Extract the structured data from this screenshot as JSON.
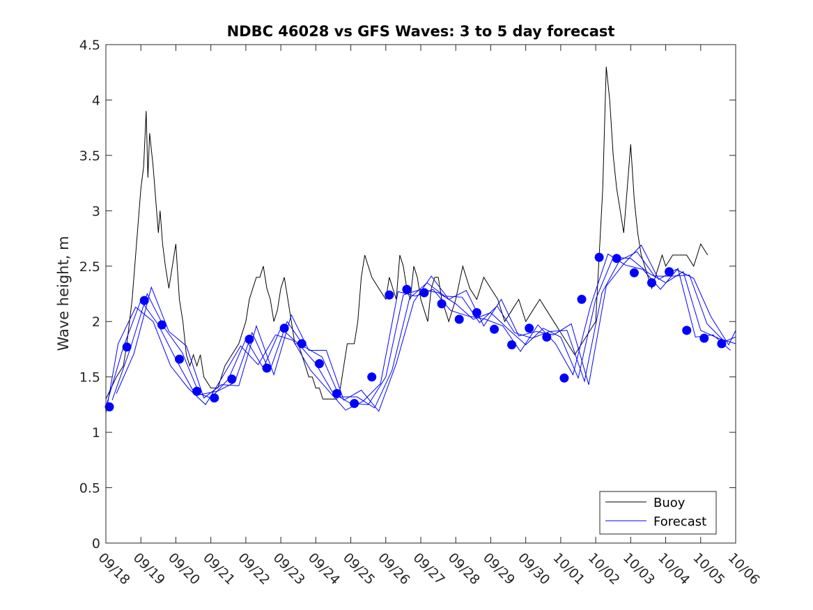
{
  "chart_data": {
    "type": "line",
    "title": "NDBC 46028 vs GFS Waves: 3 to 5 day forecast",
    "xlabel": "",
    "ylabel": "Wave height, m",
    "x_tick_labels": [
      "09/18",
      "09/19",
      "09/20",
      "09/21",
      "09/22",
      "09/23",
      "09/24",
      "09/25",
      "09/26",
      "09/27",
      "09/28",
      "09/29",
      "09/30",
      "10/01",
      "10/02",
      "10/03",
      "10/04",
      "10/05",
      "10/06"
    ],
    "xlim_days": [
      0,
      18
    ],
    "ylim": [
      0,
      4.5
    ],
    "y_ticks": [
      0,
      0.5,
      1,
      1.5,
      2,
      2.5,
      3,
      3.5,
      4,
      4.5
    ],
    "y_tick_labels": [
      "0",
      "0.5",
      "1",
      "1.5",
      "2",
      "2.5",
      "3",
      "3.5",
      "4",
      "4.5"
    ],
    "legend": {
      "position": "bottom-right",
      "entries": [
        {
          "label": "Buoy",
          "color": "#000000"
        },
        {
          "label": "Forecast",
          "color": "#0000ff"
        }
      ]
    },
    "colors": {
      "buoy": "#000000",
      "forecast": "#0000ff",
      "markers": "#0000ff"
    },
    "series": [
      {
        "name": "Buoy",
        "x": [
          0.0,
          0.15,
          0.3,
          0.5,
          0.6,
          0.75,
          0.85,
          0.95,
          1.0,
          1.08,
          1.15,
          1.2,
          1.25,
          1.35,
          1.45,
          1.5,
          1.55,
          1.62,
          1.7,
          1.8,
          1.9,
          2.0,
          2.1,
          2.2,
          2.3,
          2.4,
          2.5,
          2.6,
          2.7,
          2.8,
          3.0,
          3.2,
          3.4,
          3.6,
          3.8,
          4.0,
          4.1,
          4.2,
          4.3,
          4.4,
          4.5,
          4.6,
          4.7,
          4.8,
          4.9,
          5.0,
          5.1,
          5.2,
          5.3,
          5.4,
          5.5,
          5.6,
          5.7,
          5.8,
          5.9,
          6.0,
          6.1,
          6.2,
          6.3,
          6.4,
          6.5,
          6.6,
          6.7,
          6.8,
          6.9,
          7.0,
          7.1,
          7.2,
          7.3,
          7.4,
          7.6,
          7.8,
          8.0,
          8.1,
          8.2,
          8.3,
          8.4,
          8.5,
          8.6,
          8.7,
          8.8,
          8.9,
          9.0,
          9.1,
          9.2,
          9.3,
          9.4,
          9.5,
          9.6,
          9.7,
          9.8,
          9.9,
          10.0,
          10.2,
          10.4,
          10.6,
          10.8,
          11.0,
          11.2,
          11.4,
          11.6,
          11.8,
          12.0,
          12.2,
          12.4,
          12.6,
          12.8,
          13.0,
          13.2,
          13.4,
          13.6,
          13.8,
          14.0,
          14.1,
          14.2,
          14.3,
          14.4,
          14.5,
          14.6,
          14.7,
          14.8,
          14.9,
          15.0,
          15.1,
          15.2,
          15.3,
          15.4,
          15.5,
          15.6,
          15.7,
          15.8,
          15.9,
          16.0,
          16.2,
          16.4,
          16.6,
          16.8,
          17.0,
          17.2
        ],
        "values": [
          1.3,
          1.4,
          1.5,
          1.6,
          1.8,
          2.2,
          2.6,
          3.0,
          3.2,
          3.4,
          3.9,
          3.3,
          3.7,
          3.4,
          3.0,
          2.8,
          3.0,
          2.7,
          2.5,
          2.3,
          2.5,
          2.7,
          2.2,
          2.0,
          1.7,
          1.6,
          1.7,
          1.6,
          1.7,
          1.5,
          1.4,
          1.4,
          1.6,
          1.7,
          1.8,
          2.0,
          2.2,
          2.3,
          2.4,
          2.4,
          2.5,
          2.3,
          2.2,
          2.0,
          2.1,
          2.3,
          2.4,
          2.2,
          2.0,
          1.8,
          1.8,
          1.7,
          1.6,
          1.5,
          1.5,
          1.4,
          1.4,
          1.3,
          1.3,
          1.3,
          1.3,
          1.3,
          1.4,
          1.6,
          1.8,
          1.8,
          1.8,
          2.0,
          2.4,
          2.6,
          2.4,
          2.3,
          2.2,
          2.4,
          2.3,
          2.2,
          2.6,
          2.5,
          2.3,
          2.2,
          2.5,
          2.4,
          2.2,
          2.1,
          2.0,
          2.3,
          2.4,
          2.4,
          2.2,
          2.1,
          2.0,
          2.1,
          2.2,
          2.5,
          2.3,
          2.2,
          2.4,
          2.3,
          2.2,
          2.0,
          2.1,
          2.2,
          2.0,
          2.1,
          2.2,
          2.1,
          2.0,
          1.9,
          1.8,
          1.7,
          1.8,
          1.9,
          2.0,
          2.6,
          3.2,
          4.3,
          4.0,
          3.5,
          3.2,
          3.0,
          2.8,
          3.2,
          3.6,
          3.1,
          2.8,
          2.6,
          2.5,
          2.4,
          2.3,
          2.4,
          2.5,
          2.6,
          2.5,
          2.6,
          2.6,
          2.6,
          2.5,
          2.7,
          2.6
        ]
      },
      {
        "name": "Forecast",
        "x": [
          0.0,
          0.5,
          1.0,
          1.5,
          2.0,
          2.5,
          3.0,
          3.5,
          4.0,
          4.5,
          5.0,
          5.5,
          6.0,
          6.5,
          7.0,
          7.5,
          8.0,
          8.5,
          9.0,
          9.5,
          10.0,
          10.5,
          11.0,
          11.5,
          12.0,
          12.5,
          13.0,
          13.5,
          14.0,
          14.5,
          15.0,
          15.5,
          16.0,
          16.5,
          17.0,
          17.5,
          18.0
        ],
        "values": [
          1.23,
          1.77,
          2.19,
          1.97,
          1.66,
          1.37,
          1.31,
          1.48,
          1.84,
          1.58,
          1.94,
          1.8,
          1.62,
          1.35,
          1.26,
          1.25,
          1.5,
          2.24,
          2.29,
          2.26,
          2.16,
          2.02,
          2.08,
          1.93,
          1.79,
          1.94,
          1.86,
          1.49,
          2.2,
          2.58,
          2.57,
          2.44,
          2.35,
          2.45,
          1.92,
          1.85,
          1.8
        ]
      },
      {
        "name": "Forecast markers",
        "x": [
          0.1,
          0.6,
          1.1,
          1.6,
          2.1,
          2.6,
          3.1,
          3.6,
          4.1,
          4.6,
          5.1,
          5.6,
          6.1,
          6.6,
          7.1,
          7.6,
          8.1,
          8.6,
          9.1,
          9.6,
          10.1,
          10.6,
          11.1,
          11.6,
          12.1,
          12.6,
          13.1,
          13.6,
          14.1,
          14.6,
          15.1,
          15.6,
          16.1,
          16.6,
          17.1,
          17.6
        ],
        "values": [
          1.23,
          1.77,
          2.19,
          1.97,
          1.66,
          1.37,
          1.31,
          1.48,
          1.84,
          1.58,
          1.94,
          1.8,
          1.62,
          1.35,
          1.26,
          1.5,
          2.24,
          2.29,
          2.26,
          2.16,
          2.02,
          2.08,
          1.93,
          1.79,
          1.94,
          1.86,
          1.49,
          2.2,
          2.58,
          2.57,
          2.44,
          2.35,
          2.45,
          1.92,
          1.85,
          1.8
        ]
      }
    ]
  }
}
